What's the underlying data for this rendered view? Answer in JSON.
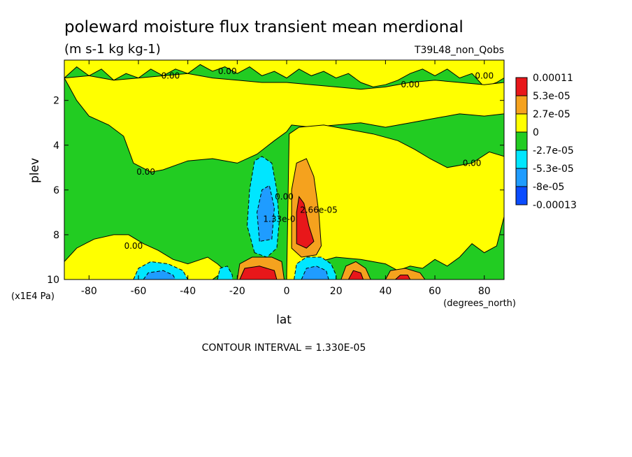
{
  "chart_data": {
    "type": "contour",
    "title": "poleward moisture flux transient mean merdional",
    "units": "(m s-1 kg kg-1)",
    "dataset": "T39L48_non_Qobs",
    "xlabel": "lat",
    "xunit": "(degrees_north)",
    "ylabel": "plev",
    "yunit": "(x1E4 Pa)",
    "xlim": [
      -90,
      88
    ],
    "ylim": [
      10,
      0.2
    ],
    "y_reversed": true,
    "x_ticks": [
      {
        "value": -80,
        "label": "-80"
      },
      {
        "value": -60,
        "label": "-60"
      },
      {
        "value": -40,
        "label": "-40"
      },
      {
        "value": -20,
        "label": "-20"
      },
      {
        "value": 0,
        "label": "0"
      },
      {
        "value": 20,
        "label": "20"
      },
      {
        "value": 40,
        "label": "40"
      },
      {
        "value": 60,
        "label": "60"
      },
      {
        "value": 80,
        "label": "80"
      }
    ],
    "y_ticks": [
      {
        "value": 2,
        "label": "2"
      },
      {
        "value": 4,
        "label": "4"
      },
      {
        "value": 6,
        "label": "6"
      },
      {
        "value": 8,
        "label": "8"
      },
      {
        "value": 10,
        "label": "10"
      }
    ],
    "colorbar": [
      {
        "label": "0.00011",
        "color": "#e8171a"
      },
      {
        "label": "5.3e-05",
        "color": "#f5a21e"
      },
      {
        "label": "2.7e-05",
        "color": "#ffff00"
      },
      {
        "label": "0",
        "color": "#22cc22"
      },
      {
        "label": "-2.7e-05",
        "color": "#00e6ff"
      },
      {
        "label": "-5.3e-05",
        "color": "#1f9cff"
      },
      {
        "label": "-8e-05",
        "color": "#0a4cff"
      },
      {
        "label": "-0.00013",
        "color": ""
      }
    ],
    "contour_labels": [
      {
        "text": "0.00",
        "lat": -47,
        "plev": 0.9
      },
      {
        "text": "0.00",
        "lat": -24,
        "plev": 0.7
      },
      {
        "text": "0.00",
        "lat": 50,
        "plev": 1.3
      },
      {
        "text": "0.00",
        "lat": 80,
        "plev": 0.9
      },
      {
        "text": "0.00",
        "lat": -57,
        "plev": 5.2
      },
      {
        "text": "0.00",
        "lat": 75,
        "plev": 4.8
      },
      {
        "text": "0.00",
        "lat": -62,
        "plev": 8.5
      },
      {
        "text": "0.00",
        "lat": -1,
        "plev": 6.3
      },
      {
        "text": "1.33e-0",
        "lat": -3,
        "plev": 7.3
      },
      {
        "text": "2.66e-05",
        "lat": 13,
        "plev": 6.9
      }
    ],
    "regions": [
      {
        "level": "0",
        "desc": "green, value between -2.7e-05 and 0",
        "polys": [
          [
            [
              -90,
              1.0
            ],
            [
              -85,
              0.5
            ],
            [
              -80,
              0.9
            ],
            [
              -75,
              0.6
            ],
            [
              -70,
              1.1
            ],
            [
              -65,
              0.8
            ],
            [
              -60,
              1.0
            ],
            [
              -55,
              0.6
            ],
            [
              -50,
              0.9
            ],
            [
              -45,
              0.6
            ],
            [
              -40,
              0.8
            ],
            [
              -35,
              0.4
            ],
            [
              -30,
              0.7
            ],
            [
              -25,
              0.5
            ],
            [
              -20,
              0.8
            ],
            [
              -15,
              0.5
            ],
            [
              -10,
              0.9
            ],
            [
              -5,
              0.7
            ],
            [
              0,
              1.0
            ],
            [
              5,
              0.6
            ],
            [
              10,
              0.9
            ],
            [
              15,
              0.7
            ],
            [
              20,
              1.0
            ],
            [
              25,
              0.8
            ],
            [
              30,
              1.2
            ],
            [
              35,
              1.4
            ],
            [
              40,
              1.3
            ],
            [
              45,
              1.1
            ],
            [
              50,
              0.8
            ],
            [
              55,
              0.6
            ],
            [
              60,
              0.9
            ],
            [
              65,
              0.6
            ],
            [
              70,
              1.0
            ],
            [
              75,
              0.8
            ],
            [
              80,
              1.4
            ],
            [
              85,
              1.2
            ],
            [
              88,
              1.0
            ],
            [
              88,
              10
            ],
            [
              -90,
              10
            ]
          ]
        ]
      },
      {
        "level": "2.7e-05",
        "desc": "yellow, upper-tropospheric band 0 to 2.7e-05",
        "polys": [
          [
            [
              -90,
              1.0
            ],
            [
              -80,
              0.9
            ],
            [
              -70,
              1.1
            ],
            [
              -60,
              1.0
            ],
            [
              -50,
              0.9
            ],
            [
              -40,
              0.8
            ],
            [
              -30,
              1.0
            ],
            [
              -20,
              1.1
            ],
            [
              -10,
              1.2
            ],
            [
              0,
              1.2
            ],
            [
              10,
              1.3
            ],
            [
              20,
              1.4
            ],
            [
              30,
              1.5
            ],
            [
              40,
              1.4
            ],
            [
              50,
              1.2
            ],
            [
              60,
              1.1
            ],
            [
              70,
              1.2
            ],
            [
              80,
              1.3
            ],
            [
              88,
              1.2
            ],
            [
              88,
              2.6
            ],
            [
              80,
              2.7
            ],
            [
              70,
              2.6
            ],
            [
              60,
              2.8
            ],
            [
              50,
              3.0
            ],
            [
              40,
              3.2
            ],
            [
              30,
              3.0
            ],
            [
              20,
              3.1
            ],
            [
              10,
              3.2
            ],
            [
              2,
              3.1
            ],
            [
              0,
              3.4
            ],
            [
              -5,
              3.8
            ],
            [
              -12,
              4.4
            ],
            [
              -20,
              4.8
            ],
            [
              -30,
              4.6
            ],
            [
              -40,
              4.7
            ],
            [
              -50,
              5.1
            ],
            [
              -55,
              5.2
            ],
            [
              -62,
              4.8
            ],
            [
              -66,
              3.6
            ],
            [
              -72,
              3.1
            ],
            [
              -80,
              2.7
            ],
            [
              -85,
              2.0
            ],
            [
              -88,
              1.4
            ]
          ]
        ]
      },
      {
        "level": "2.7e-05",
        "desc": "yellow, northern hemisphere below 3 (10^4 Pa)",
        "polys": [
          [
            [
              0,
              10
            ],
            [
              1,
              3.5
            ],
            [
              5,
              3.2
            ],
            [
              15,
              3.1
            ],
            [
              25,
              3.3
            ],
            [
              35,
              3.5
            ],
            [
              45,
              3.8
            ],
            [
              52,
              4.2
            ],
            [
              58,
              4.6
            ],
            [
              65,
              5.0
            ],
            [
              75,
              4.8
            ],
            [
              82,
              4.3
            ],
            [
              88,
              4.5
            ],
            [
              88,
              7.2
            ],
            [
              85,
              8.5
            ],
            [
              80,
              8.8
            ],
            [
              75,
              8.4
            ],
            [
              70,
              9.0
            ],
            [
              65,
              9.4
            ],
            [
              60,
              9.1
            ],
            [
              55,
              9.5
            ],
            [
              50,
              9.4
            ],
            [
              45,
              9.6
            ],
            [
              40,
              9.3
            ],
            [
              30,
              9.1
            ],
            [
              20,
              9.0
            ],
            [
              10,
              9.3
            ],
            [
              5,
              10
            ]
          ]
        ]
      },
      {
        "level": "2.7e-05",
        "desc": "yellow, southern near-surface tongue",
        "polys": [
          [
            [
              -90,
              9.2
            ],
            [
              -85,
              8.6
            ],
            [
              -78,
              8.2
            ],
            [
              -70,
              8.0
            ],
            [
              -64,
              8.0
            ],
            [
              -58,
              8.4
            ],
            [
              -52,
              8.7
            ],
            [
              -46,
              9.1
            ],
            [
              -40,
              9.3
            ],
            [
              -32,
              9.0
            ],
            [
              -28,
              9.3
            ],
            [
              -25,
              9.6
            ],
            [
              -30,
              10
            ],
            [
              -90,
              10
            ]
          ]
        ]
      },
      {
        "level": "-2.7e-05",
        "desc": "cyan, value between -5.3e-05 and -2.7e-05",
        "polys": [
          [
            [
              -13,
              8.8
            ],
            [
              -16,
              7.6
            ],
            [
              -15,
              6.0
            ],
            [
              -13,
              4.7
            ],
            [
              -10,
              4.5
            ],
            [
              -6,
              4.8
            ],
            [
              -4,
              6.0
            ],
            [
              -3,
              7.4
            ],
            [
              -4,
              8.6
            ],
            [
              -8,
              9.0
            ]
          ],
          [
            [
              -62,
              10
            ],
            [
              -60,
              9.5
            ],
            [
              -55,
              9.2
            ],
            [
              -48,
              9.3
            ],
            [
              -42,
              9.6
            ],
            [
              -40,
              10
            ]
          ],
          [
            [
              -28,
              10
            ],
            [
              -27,
              9.5
            ],
            [
              -24,
              9.4
            ],
            [
              -22,
              9.8
            ],
            [
              -22,
              10
            ]
          ],
          [
            [
              3,
              10
            ],
            [
              4,
              9.3
            ],
            [
              8,
              9.0
            ],
            [
              14,
              9.0
            ],
            [
              18,
              9.3
            ],
            [
              20,
              9.8
            ],
            [
              20,
              10
            ]
          ]
        ]
      },
      {
        "level": "-5.3e-05",
        "desc": "blue, value below -5.3e-05",
        "polys": [
          [
            [
              -11,
              8.3
            ],
            [
              -12,
              7.0
            ],
            [
              -10,
              6.0
            ],
            [
              -7,
              5.8
            ],
            [
              -5,
              6.8
            ],
            [
              -6,
              8.2
            ]
          ],
          [
            [
              -58,
              10
            ],
            [
              -56,
              9.7
            ],
            [
              -50,
              9.6
            ],
            [
              -46,
              9.8
            ],
            [
              -45,
              10
            ]
          ],
          [
            [
              6,
              10
            ],
            [
              8,
              9.5
            ],
            [
              12,
              9.4
            ],
            [
              16,
              9.6
            ],
            [
              17,
              10
            ]
          ]
        ]
      },
      {
        "level": "5.3e-05",
        "desc": "orange, value between 2.7e-05 and 5.3e-05",
        "polys": [
          [
            [
              2,
              8.6
            ],
            [
              2,
              6.0
            ],
            [
              4,
              4.8
            ],
            [
              8,
              4.6
            ],
            [
              11,
              5.4
            ],
            [
              13,
              7.0
            ],
            [
              14,
              8.5
            ],
            [
              12,
              8.9
            ],
            [
              6,
              9.0
            ]
          ],
          [
            [
              -20,
              10
            ],
            [
              -19,
              9.3
            ],
            [
              -14,
              9.0
            ],
            [
              -6,
              9.0
            ],
            [
              -2,
              9.2
            ],
            [
              -1,
              10
            ]
          ],
          [
            [
              22,
              10
            ],
            [
              24,
              9.4
            ],
            [
              28,
              9.2
            ],
            [
              32,
              9.5
            ],
            [
              34,
              10
            ]
          ],
          [
            [
              40,
              10
            ],
            [
              42,
              9.6
            ],
            [
              48,
              9.5
            ],
            [
              54,
              9.7
            ],
            [
              56,
              10
            ]
          ]
        ]
      },
      {
        "level": "0.00011",
        "desc": "red, value above 5.3e-05",
        "polys": [
          [
            [
              4,
              8.4
            ],
            [
              4,
              7.0
            ],
            [
              5,
              6.3
            ],
            [
              7,
              6.6
            ],
            [
              9,
              7.6
            ],
            [
              11,
              8.3
            ],
            [
              8,
              8.6
            ]
          ],
          [
            [
              -19,
              10
            ],
            [
              -17,
              9.5
            ],
            [
              -11,
              9.4
            ],
            [
              -5,
              9.6
            ],
            [
              -4,
              10
            ]
          ],
          [
            [
              25,
              10
            ],
            [
              27,
              9.6
            ],
            [
              30,
              9.7
            ],
            [
              31,
              10
            ]
          ],
          [
            [
              44,
              10
            ],
            [
              46,
              9.8
            ],
            [
              49,
              9.8
            ],
            [
              50,
              10
            ]
          ]
        ]
      }
    ]
  },
  "footer": {
    "contour_interval": "CONTOUR INTERVAL = 1.330E-05"
  }
}
